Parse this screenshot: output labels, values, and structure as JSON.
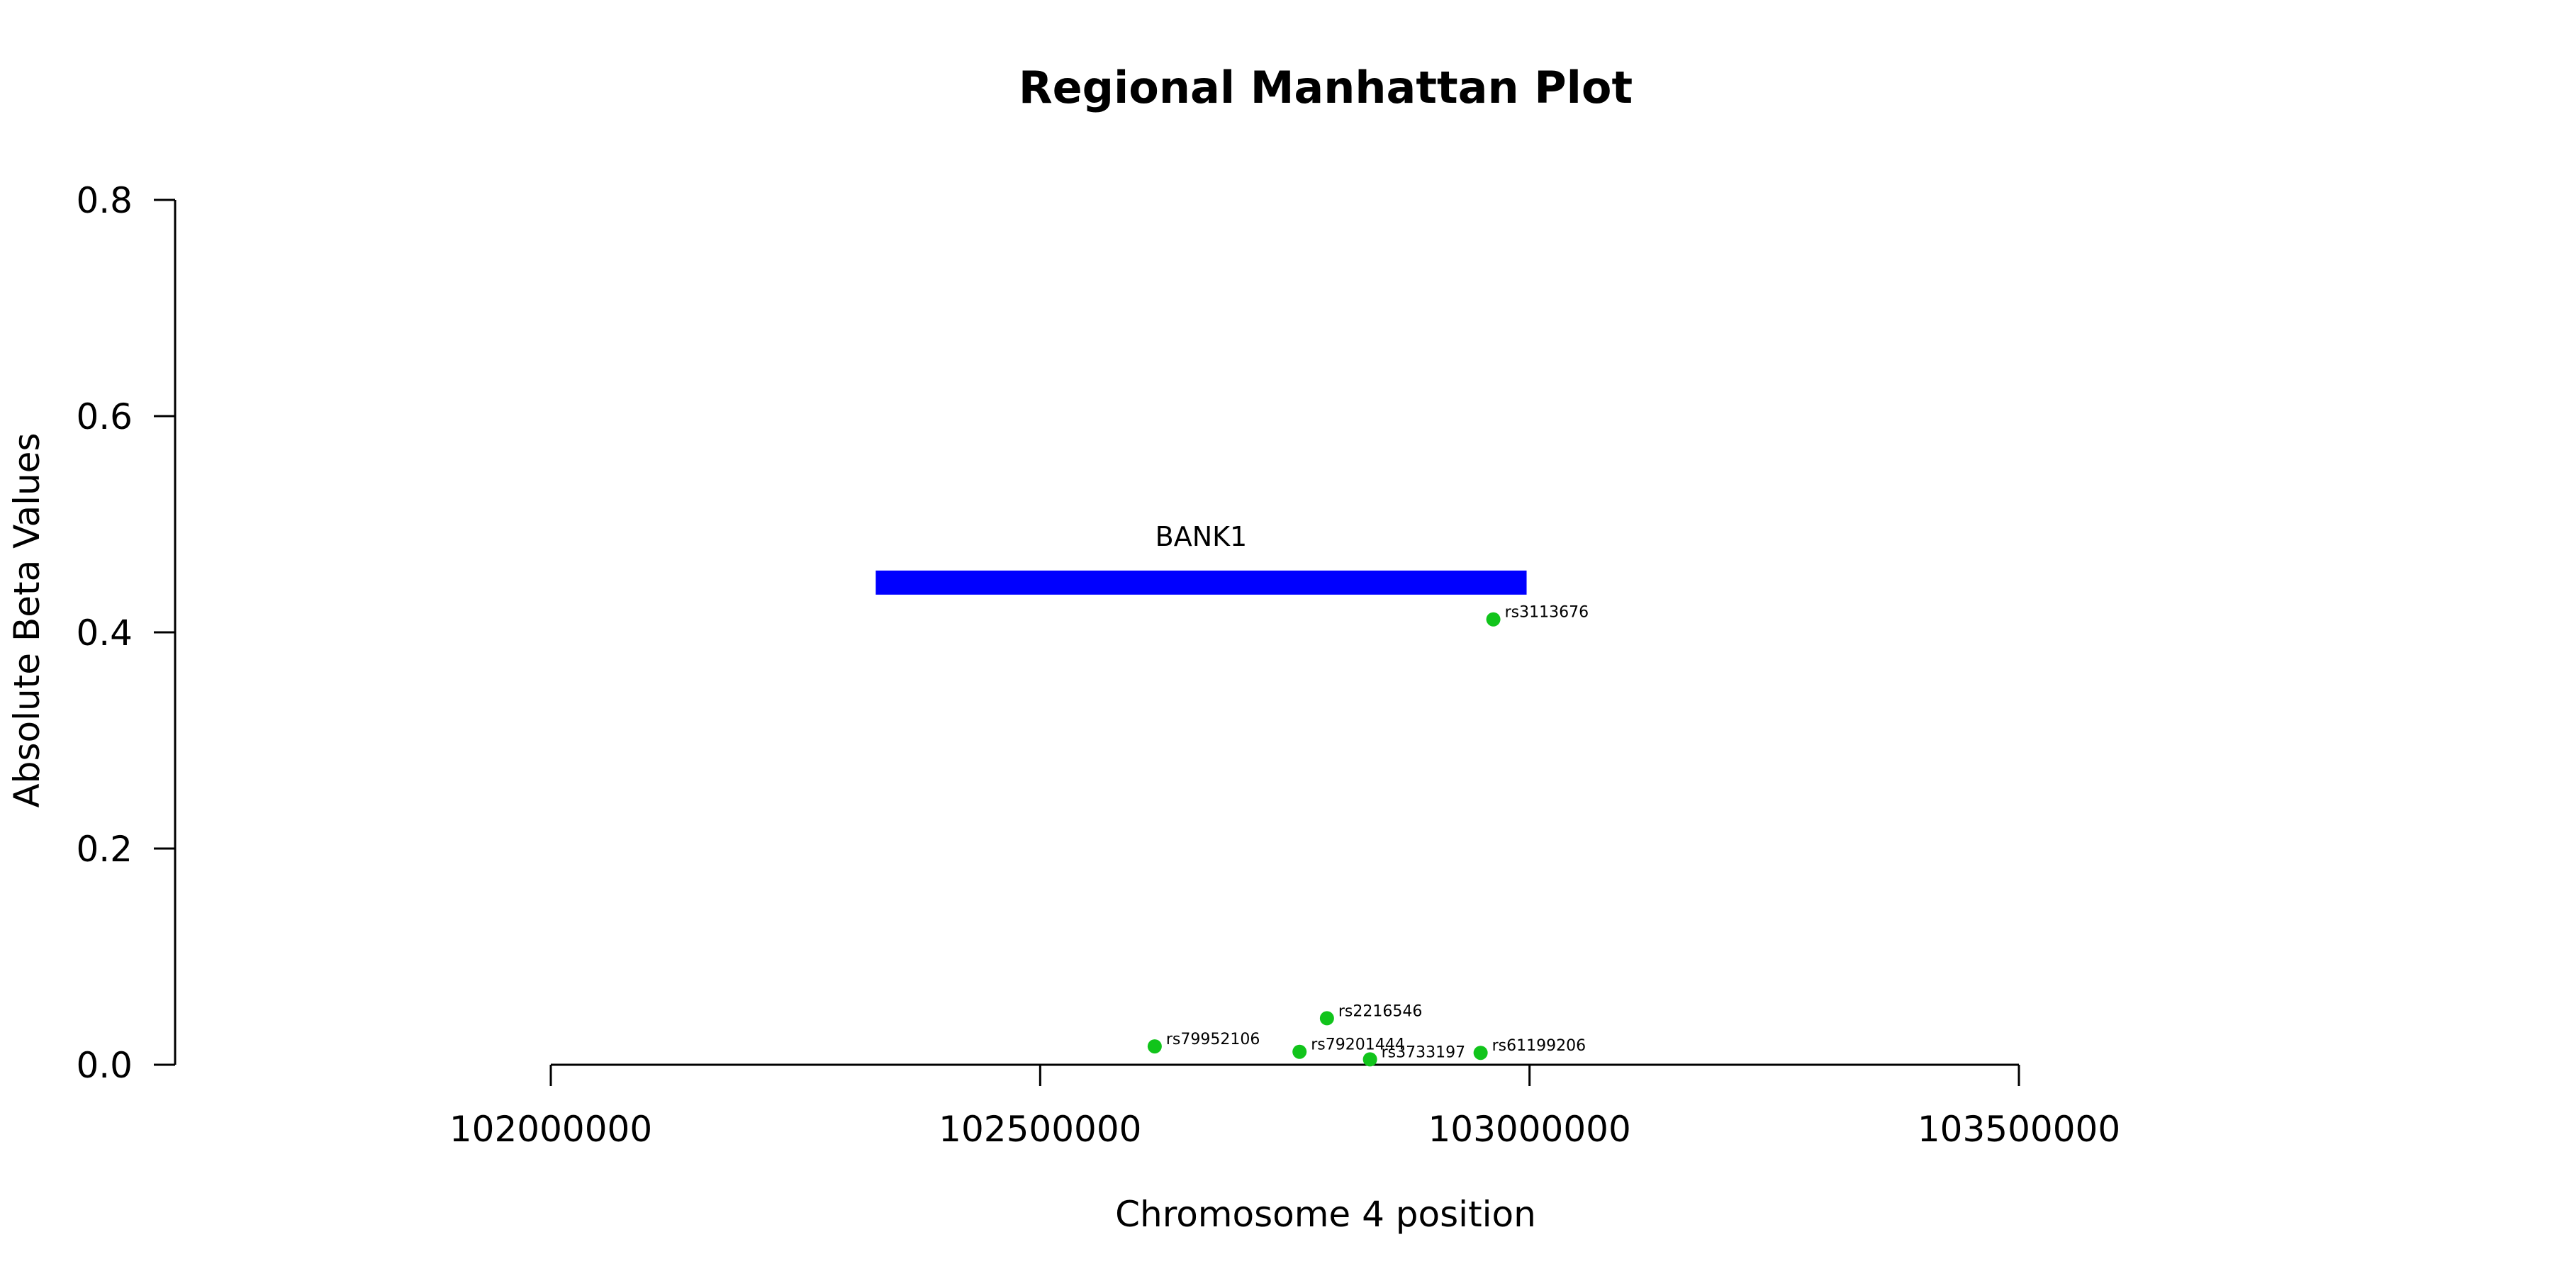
{
  "chart_data": {
    "type": "scatter",
    "title": "Regional Manhattan Plot",
    "xlabel": "Chromosome 4 position",
    "ylabel": "Absolute Beta Values",
    "xlim": [
      102000000,
      103500000
    ],
    "ylim": [
      0,
      0.8
    ],
    "x_ticks": [
      102000000,
      102500000,
      103000000,
      103500000
    ],
    "x_tick_labels": [
      "102000000",
      "102500000",
      "103000000",
      "103500000"
    ],
    "y_ticks": [
      0,
      0.2,
      0.4,
      0.6,
      0.8
    ],
    "y_tick_labels": [
      "0.0",
      "0.2",
      "0.4",
      "0.6",
      "0.8"
    ],
    "grid": false,
    "point_color": "#11c41b",
    "points": [
      {
        "label": "rs3113676",
        "x": 102963000,
        "y": 0.412
      },
      {
        "label": "rs2216546",
        "x": 102793000,
        "y": 0.043
      },
      {
        "label": "rs79952106",
        "x": 102617000,
        "y": 0.017
      },
      {
        "label": "rs79201444",
        "x": 102765000,
        "y": 0.012
      },
      {
        "label": "rs3733197",
        "x": 102837000,
        "y": 0.005
      },
      {
        "label": "rs61199206",
        "x": 102950000,
        "y": 0.011
      }
    ],
    "genes": [
      {
        "name": "BANK1",
        "start": 102332000,
        "end": 102997000,
        "y": 0.446,
        "color": "#0000ff"
      }
    ]
  }
}
